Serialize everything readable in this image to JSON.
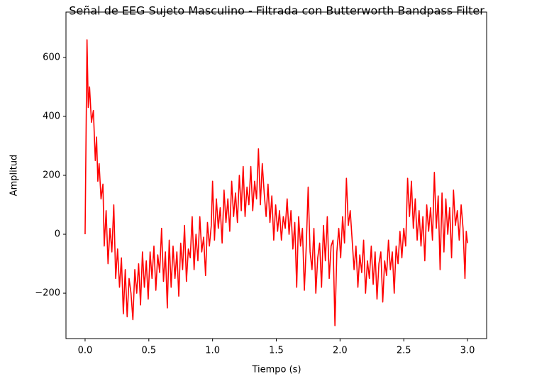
{
  "chart_data": {
    "type": "line",
    "title": "Señal de EEG Sujeto Masculino - Filtrada con Butterworth Bandpass Filter",
    "xlabel": "Tiempo (s)",
    "ylabel": "Amplitud",
    "xlim": [
      -0.15,
      3.15
    ],
    "ylim": [
      -354,
      754
    ],
    "xticks": [
      {
        "value": 0,
        "label": "0.0"
      },
      {
        "value": 0.5,
        "label": "0.5"
      },
      {
        "value": 1,
        "label": "1.0"
      },
      {
        "value": 1.5,
        "label": "1.5"
      },
      {
        "value": 2,
        "label": "2.0"
      },
      {
        "value": 2.5,
        "label": "2.5"
      },
      {
        "value": 3,
        "label": "3.0"
      }
    ],
    "yticks": [
      {
        "value": -200,
        "label": "−200"
      },
      0,
      200,
      400,
      600
    ],
    "x": [
      0,
      0.015,
      0.025,
      0.035,
      0.05,
      0.065,
      0.08,
      0.09,
      0.1,
      0.11,
      0.125,
      0.14,
      0.15,
      0.165,
      0.18,
      0.195,
      0.21,
      0.225,
      0.24,
      0.255,
      0.27,
      0.285,
      0.3,
      0.315,
      0.33,
      0.345,
      0.36,
      0.375,
      0.39,
      0.405,
      0.42,
      0.435,
      0.45,
      0.465,
      0.48,
      0.495,
      0.51,
      0.525,
      0.54,
      0.555,
      0.57,
      0.585,
      0.6,
      0.615,
      0.63,
      0.645,
      0.66,
      0.675,
      0.69,
      0.705,
      0.72,
      0.735,
      0.75,
      0.765,
      0.78,
      0.795,
      0.81,
      0.825,
      0.84,
      0.855,
      0.87,
      0.885,
      0.9,
      0.915,
      0.93,
      0.945,
      0.96,
      0.975,
      0.99,
      1.0,
      1.015,
      1.03,
      1.045,
      1.06,
      1.075,
      1.09,
      1.105,
      1.12,
      1.135,
      1.15,
      1.165,
      1.18,
      1.195,
      1.21,
      1.225,
      1.24,
      1.255,
      1.27,
      1.285,
      1.3,
      1.315,
      1.33,
      1.345,
      1.36,
      1.375,
      1.39,
      1.405,
      1.42,
      1.435,
      1.45,
      1.465,
      1.48,
      1.495,
      1.51,
      1.525,
      1.54,
      1.555,
      1.57,
      1.585,
      1.6,
      1.615,
      1.63,
      1.645,
      1.66,
      1.675,
      1.69,
      1.705,
      1.72,
      1.735,
      1.75,
      1.765,
      1.78,
      1.795,
      1.81,
      1.825,
      1.84,
      1.855,
      1.87,
      1.885,
      1.9,
      1.915,
      1.93,
      1.945,
      1.96,
      1.975,
      1.99,
      2.005,
      2.02,
      2.035,
      2.05,
      2.065,
      2.08,
      2.095,
      2.11,
      2.125,
      2.14,
      2.155,
      2.17,
      2.185,
      2.2,
      2.215,
      2.23,
      2.245,
      2.26,
      2.275,
      2.29,
      2.305,
      2.32,
      2.335,
      2.35,
      2.365,
      2.38,
      2.395,
      2.41,
      2.425,
      2.44,
      2.455,
      2.47,
      2.485,
      2.5,
      2.515,
      2.53,
      2.545,
      2.56,
      2.575,
      2.59,
      2.605,
      2.62,
      2.635,
      2.65,
      2.665,
      2.68,
      2.695,
      2.71,
      2.725,
      2.74,
      2.755,
      2.77,
      2.785,
      2.8,
      2.815,
      2.83,
      2.845,
      2.86,
      2.875,
      2.89,
      2.905,
      2.92,
      2.935,
      2.95,
      2.965,
      2.98,
      2.99,
      3.0
    ],
    "series": [
      {
        "color": "#ff0000",
        "values": [
          0,
          660,
          430,
          500,
          380,
          420,
          250,
          330,
          180,
          240,
          120,
          170,
          -40,
          80,
          -100,
          20,
          -60,
          100,
          -150,
          -50,
          -180,
          -80,
          -270,
          -120,
          -280,
          -150,
          -200,
          -290,
          -120,
          -200,
          -100,
          -240,
          -60,
          -180,
          -90,
          -220,
          -60,
          -150,
          -40,
          -190,
          -70,
          -130,
          20,
          -160,
          -60,
          -250,
          -20,
          -180,
          -40,
          -150,
          -60,
          -210,
          -30,
          -120,
          30,
          -160,
          -50,
          -80,
          60,
          -120,
          0,
          -90,
          60,
          -60,
          -10,
          -140,
          40,
          -40,
          30,
          180,
          -20,
          120,
          20,
          90,
          -30,
          150,
          40,
          120,
          10,
          180,
          60,
          140,
          40,
          200,
          80,
          230,
          60,
          160,
          100,
          230,
          80,
          180,
          120,
          290,
          100,
          240,
          140,
          60,
          170,
          40,
          130,
          -20,
          100,
          10,
          80,
          -20,
          60,
          20,
          120,
          0,
          80,
          -50,
          40,
          -180,
          60,
          -40,
          20,
          -190,
          -40,
          160,
          -60,
          -120,
          20,
          -200,
          -80,
          -30,
          -180,
          30,
          -90,
          60,
          -150,
          -40,
          -20,
          -310,
          -60,
          20,
          -80,
          60,
          -30,
          190,
          30,
          80,
          -20,
          -120,
          -40,
          -180,
          -70,
          -130,
          -20,
          -200,
          -90,
          -150,
          -40,
          -170,
          -60,
          -220,
          -100,
          -60,
          -230,
          -90,
          -140,
          -20,
          -120,
          -60,
          -200,
          -40,
          -100,
          10,
          -80,
          20,
          -40,
          190,
          60,
          180,
          20,
          120,
          -20,
          80,
          -40,
          60,
          -90,
          100,
          10,
          90,
          -20,
          210,
          20,
          130,
          -120,
          140,
          -60,
          120,
          0,
          90,
          -80,
          150,
          30,
          80,
          -20,
          100,
          20,
          -150,
          10,
          -30
        ]
      }
    ]
  }
}
